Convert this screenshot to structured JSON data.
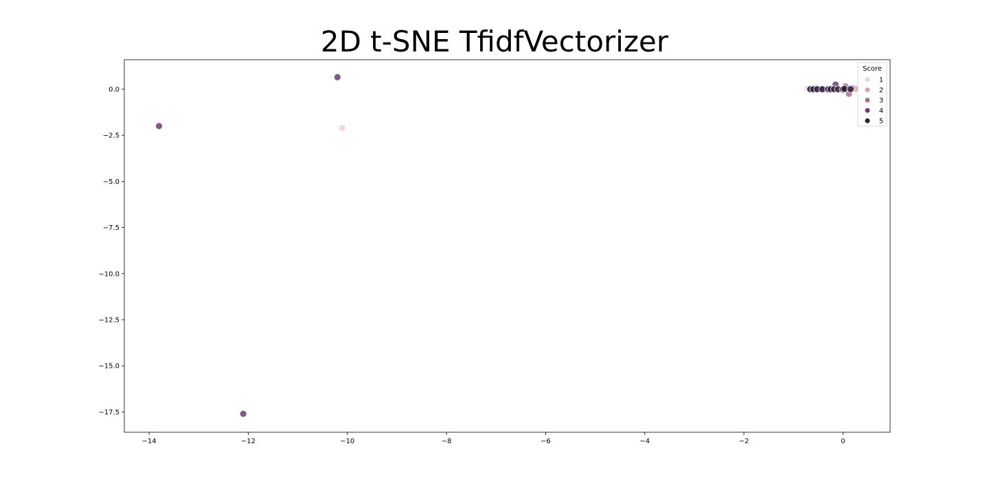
{
  "chart_data": {
    "type": "scatter",
    "title": "2D t-SNE TfidfVectorizer",
    "xlabel": "",
    "ylabel": "",
    "xlim": [
      -14.5,
      0.95
    ],
    "ylim": [
      -18.6,
      1.6
    ],
    "x_ticks": [
      -14,
      -12,
      -10,
      -8,
      -6,
      -4,
      -2,
      0
    ],
    "y_ticks": [
      0.0,
      -2.5,
      -5.0,
      -7.5,
      -10.0,
      -12.5,
      -15.0,
      -17.5
    ],
    "x_tick_labels": [
      "−14",
      "−12",
      "−10",
      "−8",
      "−6",
      "−4",
      "−2",
      "0"
    ],
    "y_tick_labels": [
      "0.0",
      "−2.5",
      "−5.0",
      "−7.5",
      "−10.0",
      "−12.5",
      "−15.0",
      "−17.5"
    ],
    "grid": false,
    "legend": {
      "title": "Score",
      "position": "top-right",
      "entries": [
        {
          "label": "1",
          "color": "#ecd5d6"
        },
        {
          "label": "2",
          "color": "#d3a3b2"
        },
        {
          "label": "3",
          "color": "#a86e92"
        },
        {
          "label": "4",
          "color": "#6a3f6c"
        },
        {
          "label": "5",
          "color": "#2e1e3b"
        }
      ]
    },
    "series": [
      {
        "name": "1",
        "color": "#ecd5d6",
        "points": [
          [
            -10.1,
            -2.1
          ],
          [
            -0.72,
            0.02
          ],
          [
            -0.45,
            0.02
          ],
          [
            0.2,
            0.02
          ],
          [
            0.15,
            -0.05
          ]
        ]
      },
      {
        "name": "2",
        "color": "#d3a3b2",
        "points": [
          [
            -0.68,
            0.01
          ],
          [
            0.12,
            0.03
          ],
          [
            0.25,
            0.02
          ]
        ]
      },
      {
        "name": "3",
        "color": "#a86e92",
        "points": [
          [
            -0.4,
            0.0
          ],
          [
            0.05,
            0.15
          ],
          [
            0.12,
            -0.25
          ],
          [
            0.18,
            0.05
          ]
        ]
      },
      {
        "name": "4",
        "color": "#6a3f6c",
        "points": [
          [
            -13.8,
            -2.0
          ],
          [
            -12.1,
            -17.6
          ],
          [
            -10.2,
            0.65
          ],
          [
            -0.15,
            0.25
          ],
          [
            -0.55,
            0.03
          ],
          [
            0.0,
            -0.05
          ]
        ]
      },
      {
        "name": "5",
        "color": "#2e1e3b",
        "points": [
          [
            -0.66,
            0.0
          ],
          [
            -0.6,
            0.0
          ],
          [
            -0.52,
            0.0
          ],
          [
            -0.42,
            0.0
          ],
          [
            -0.3,
            0.0
          ],
          [
            -0.25,
            0.0
          ],
          [
            -0.18,
            0.0
          ],
          [
            -0.1,
            0.0
          ],
          [
            0.0,
            0.0
          ],
          [
            0.03,
            0.02
          ],
          [
            0.15,
            0.0
          ]
        ]
      }
    ]
  }
}
